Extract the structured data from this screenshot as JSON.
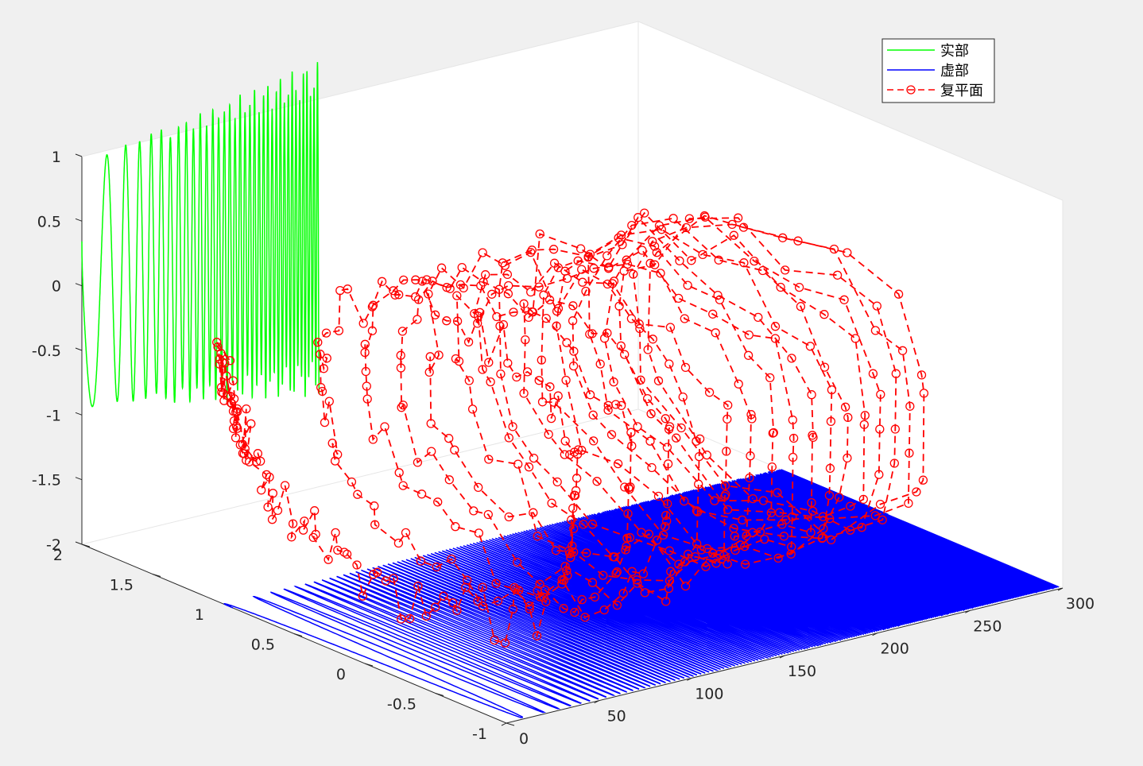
{
  "chart_data": {
    "type": "line",
    "projection": "3d",
    "view": "default-3d",
    "grid": false,
    "legend": {
      "position": "top-right",
      "entries": [
        "实部",
        "虚部",
        "复平面"
      ]
    },
    "colors": {
      "background": "#f0f0f0",
      "axes": "#ffffff",
      "axis_line": "#262626",
      "real": "#00ff00",
      "imag": "#0000ff",
      "complex": "#ff0000"
    },
    "axes": {
      "x": {
        "lim": [
          0,
          300
        ],
        "ticks": [
          "0",
          "50",
          "100",
          "150",
          "200",
          "250",
          "300"
        ]
      },
      "y": {
        "lim": [
          -1,
          2
        ],
        "ticks": [
          "-1",
          "-0.5",
          "0",
          "0.5",
          "1",
          "1.5",
          "2"
        ]
      },
      "z": {
        "lim": [
          -2,
          1
        ],
        "ticks": [
          "-2",
          "-1.5",
          "-1",
          "-0.5",
          "0",
          "0.5",
          "1"
        ]
      }
    },
    "series": [
      {
        "name": "实部",
        "style": "solid",
        "plane": "y = 2",
        "description": "real part of a chirp signal, oscillation frequency increasing with x",
        "x_range": [
          0,
          128
        ],
        "phase_model": "phi(x) = 0.013*x^2 + 0.08*x + 0.45*sqrt(x)",
        "amplitude": [
          0.95,
          1.35
        ]
      },
      {
        "name": "虚部",
        "style": "solid",
        "plane": "z = -2",
        "description": "imaginary part of the same chirp signal",
        "x_range": [
          0,
          300
        ],
        "phase_model": "phi(x) = 0.013*x^2 + 0.08*x + 0.45*sqrt(x)"
      },
      {
        "name": "复平面",
        "style": "dashed",
        "marker": "o",
        "description": "complex-plane trajectory (Re, Im) swept along x",
        "x_range": [
          0,
          300
        ],
        "samples": 560
      }
    ]
  }
}
